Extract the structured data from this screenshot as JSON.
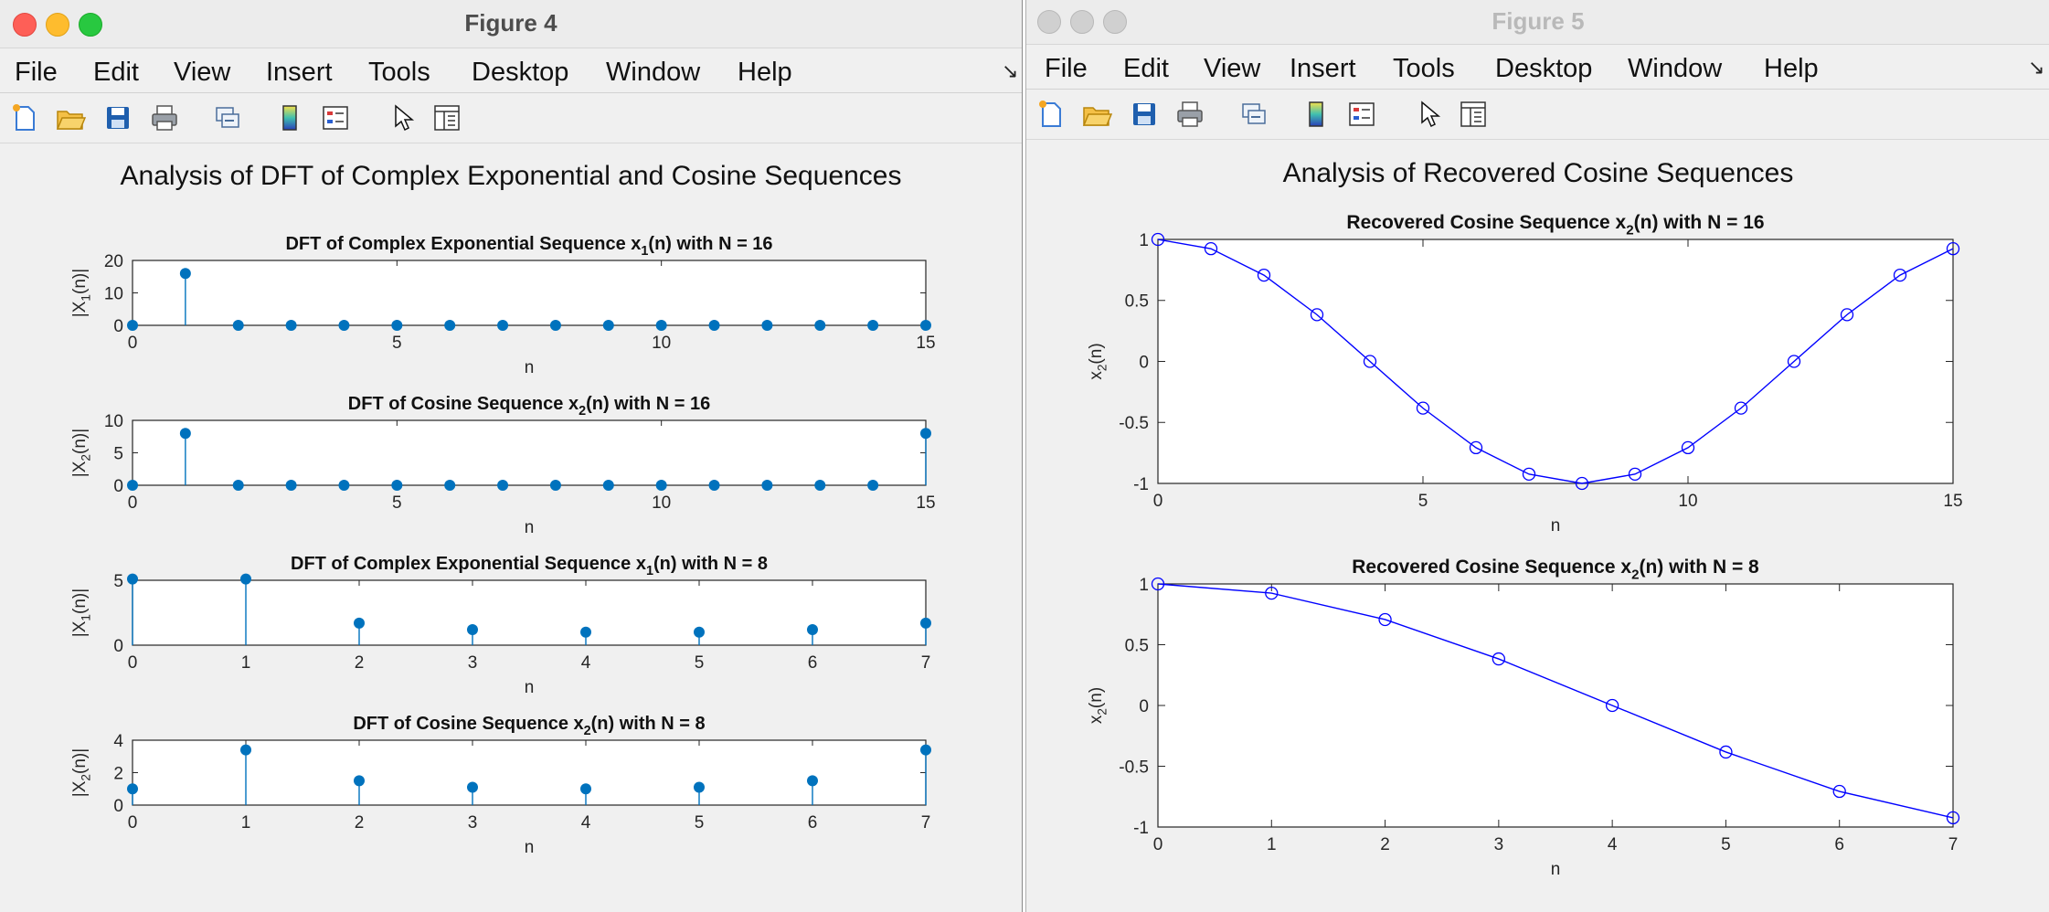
{
  "colors": {
    "stem": "#0072bd",
    "line": "#0000ff"
  },
  "figure4": {
    "title": "Figure 4",
    "menu": [
      "File",
      "Edit",
      "View",
      "Insert",
      "Tools",
      "Desktop",
      "Window",
      "Help"
    ],
    "suptitle": "Analysis of DFT of Complex Exponential and Cosine Sequences",
    "toolbar_icons": [
      "new-figure-icon",
      "open-file-icon",
      "save-icon",
      "print-icon",
      "link-plot-icon",
      "colorbar-icon",
      "legend-icon",
      "pointer-icon",
      "property-inspector-icon"
    ]
  },
  "figure5": {
    "title": "Figure 5",
    "menu": [
      "File",
      "Edit",
      "View",
      "Insert",
      "Tools",
      "Desktop",
      "Window",
      "Help"
    ],
    "suptitle": "Analysis of Recovered Cosine Sequences",
    "toolbar_icons": [
      "new-figure-icon",
      "open-file-icon",
      "save-icon",
      "print-icon",
      "link-plot-icon",
      "colorbar-icon",
      "legend-icon",
      "pointer-icon",
      "property-inspector-icon"
    ]
  },
  "chart_data": [
    {
      "type": "stem",
      "figure": "Figure 4",
      "title": "DFT of Complex Exponential Sequence x1(n) with N = 16",
      "title_parts": [
        "DFT of Complex Exponential Sequence x",
        "1",
        "(n) with N = 16"
      ],
      "xlabel": "n",
      "ylabel_parts": [
        "|X",
        "1",
        "(n)|"
      ],
      "xlim": [
        0,
        15
      ],
      "ylim": [
        0,
        20
      ],
      "xticks": [
        0,
        5,
        10,
        15
      ],
      "yticks": [
        0,
        10,
        20
      ],
      "x": [
        0,
        1,
        2,
        3,
        4,
        5,
        6,
        7,
        8,
        9,
        10,
        11,
        12,
        13,
        14,
        15
      ],
      "values": [
        0,
        16,
        0,
        0,
        0,
        0,
        0,
        0,
        0,
        0,
        0,
        0,
        0,
        0,
        0,
        0
      ]
    },
    {
      "type": "stem",
      "figure": "Figure 4",
      "title": "DFT of Cosine Sequence x2(n) with N = 16",
      "title_parts": [
        "DFT of Cosine Sequence x",
        "2",
        "(n) with N = 16"
      ],
      "xlabel": "n",
      "ylabel_parts": [
        "|X",
        "2",
        "(n)|"
      ],
      "xlim": [
        0,
        15
      ],
      "ylim": [
        0,
        10
      ],
      "xticks": [
        0,
        5,
        10,
        15
      ],
      "yticks": [
        0,
        5,
        10
      ],
      "x": [
        0,
        1,
        2,
        3,
        4,
        5,
        6,
        7,
        8,
        9,
        10,
        11,
        12,
        13,
        14,
        15
      ],
      "values": [
        0,
        8,
        0,
        0,
        0,
        0,
        0,
        0,
        0,
        0,
        0,
        0,
        0,
        0,
        0,
        8
      ]
    },
    {
      "type": "stem",
      "figure": "Figure 4",
      "title": "DFT of Complex Exponential Sequence x1(n) with N = 8",
      "title_parts": [
        "DFT of Complex Exponential Sequence x",
        "1",
        "(n) with N = 8"
      ],
      "xlabel": "n",
      "ylabel_parts": [
        "|X",
        "1",
        "(n)|"
      ],
      "xlim": [
        0,
        7
      ],
      "ylim": [
        0,
        5
      ],
      "xticks": [
        0,
        1,
        2,
        3,
        4,
        5,
        6,
        7
      ],
      "yticks": [
        0,
        5
      ],
      "x": [
        0,
        1,
        2,
        3,
        4,
        5,
        6,
        7
      ],
      "values": [
        5.1,
        5.1,
        1.7,
        1.2,
        1.0,
        1.0,
        1.2,
        1.7
      ]
    },
    {
      "type": "stem",
      "figure": "Figure 4",
      "title": "DFT of Cosine Sequence x2(n) with N = 8",
      "title_parts": [
        "DFT of Cosine Sequence x",
        "2",
        "(n) with N = 8"
      ],
      "xlabel": "n",
      "ylabel_parts": [
        "|X",
        "2",
        "(n)|"
      ],
      "xlim": [
        0,
        7
      ],
      "ylim": [
        0,
        4
      ],
      "xticks": [
        0,
        1,
        2,
        3,
        4,
        5,
        6,
        7
      ],
      "yticks": [
        0,
        2,
        4
      ],
      "x": [
        0,
        1,
        2,
        3,
        4,
        5,
        6,
        7
      ],
      "values": [
        1.0,
        3.4,
        1.5,
        1.1,
        1.0,
        1.1,
        1.5,
        3.4
      ]
    },
    {
      "type": "line",
      "figure": "Figure 5",
      "title": "Recovered Cosine Sequence x2(n) with N = 16",
      "title_parts": [
        "Recovered Cosine Sequence x",
        "2",
        "(n) with N = 16"
      ],
      "xlabel": "n",
      "ylabel_parts": [
        "x",
        "2",
        "(n)"
      ],
      "xlim": [
        0,
        15
      ],
      "ylim": [
        -1,
        1
      ],
      "xticks": [
        0,
        5,
        10,
        15
      ],
      "yticks": [
        -1,
        -0.5,
        0,
        0.5,
        1
      ],
      "marker": "o",
      "x": [
        0,
        1,
        2,
        3,
        4,
        5,
        6,
        7,
        8,
        9,
        10,
        11,
        12,
        13,
        14,
        15
      ],
      "values": [
        1,
        0.924,
        0.707,
        0.383,
        0,
        -0.383,
        -0.707,
        -0.924,
        -1,
        -0.924,
        -0.707,
        -0.383,
        0,
        0.383,
        0.707,
        0.924
      ]
    },
    {
      "type": "line",
      "figure": "Figure 5",
      "title": "Recovered Cosine Sequence x2(n) with N = 8",
      "title_parts": [
        "Recovered Cosine Sequence x",
        "2",
        "(n) with N = 8"
      ],
      "xlabel": "n",
      "ylabel_parts": [
        "x",
        "2",
        "(n)"
      ],
      "xlim": [
        0,
        7
      ],
      "ylim": [
        -1,
        1
      ],
      "xticks": [
        0,
        1,
        2,
        3,
        4,
        5,
        6,
        7
      ],
      "yticks": [
        -1,
        -0.5,
        0,
        0.5,
        1
      ],
      "marker": "o",
      "x": [
        0,
        1,
        2,
        3,
        4,
        5,
        6,
        7
      ],
      "values": [
        1,
        0.924,
        0.707,
        0.383,
        0,
        -0.383,
        -0.707,
        -0.924
      ]
    }
  ]
}
